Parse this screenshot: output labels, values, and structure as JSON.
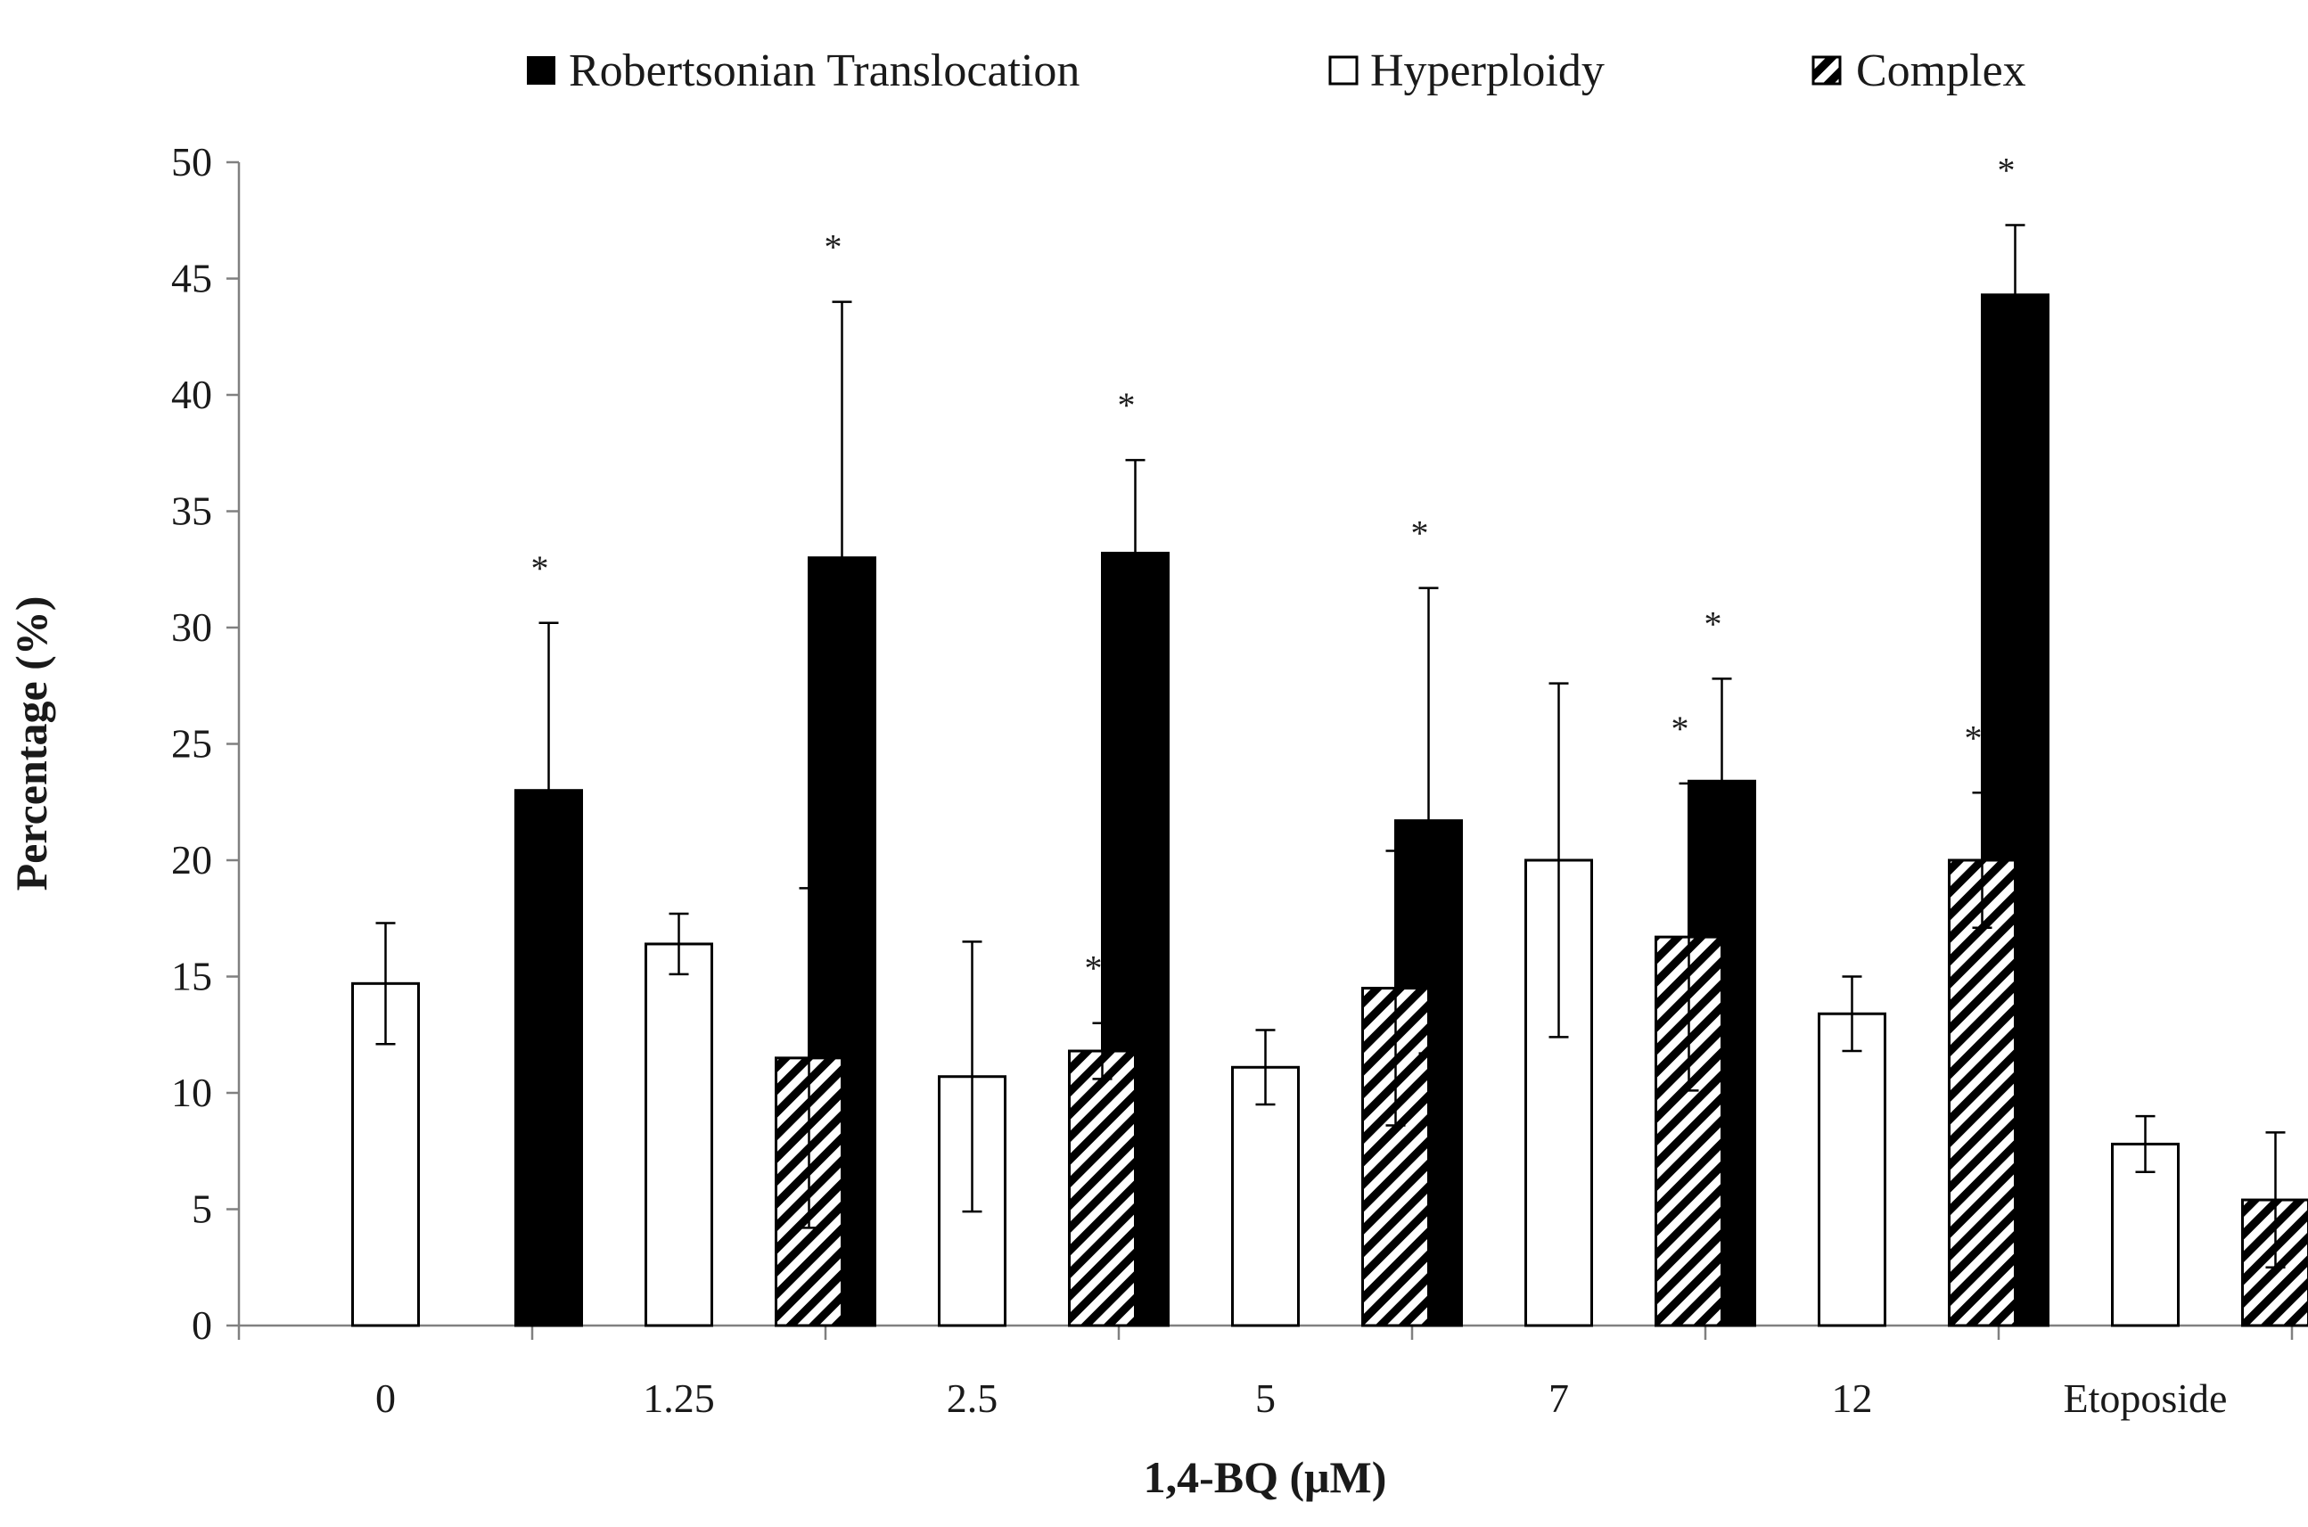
{
  "chart_data": {
    "type": "bar",
    "title": "",
    "xlabel": "1,4-BQ (μM)",
    "ylabel": "Percentage (%)",
    "ylim": [
      0,
      50
    ],
    "yticks": [
      "0",
      "5",
      "10",
      "15",
      "20",
      "25",
      "30",
      "35",
      "40",
      "45",
      "50"
    ],
    "grid": false,
    "legend_position": "top",
    "categories": [
      "0",
      "1.25",
      "2.5",
      "5",
      "7",
      "12",
      "Etoposide"
    ],
    "significance_marker": "*",
    "series": [
      {
        "name": "Robertsonian Translocation",
        "color": "#000000",
        "pattern": "solid",
        "values": [
          0,
          23.0,
          33.0,
          33.2,
          21.7,
          23.4,
          44.3
        ],
        "errors": [
          0,
          7.2,
          11.0,
          4.0,
          10.0,
          4.4,
          3.0
        ],
        "significant": [
          false,
          true,
          true,
          true,
          true,
          true,
          true
        ]
      },
      {
        "name": "Hyperploidy",
        "color": "#ffffff",
        "pattern": "open",
        "values": [
          14.7,
          16.4,
          10.7,
          11.1,
          20.0,
          13.4,
          7.8
        ],
        "errors": [
          2.6,
          1.3,
          5.8,
          1.6,
          7.6,
          1.6,
          1.2
        ],
        "significant": [
          false,
          false,
          false,
          false,
          false,
          false,
          false
        ]
      },
      {
        "name": "Complex",
        "color": "#000000",
        "pattern": "diagonal-hatch",
        "values": [
          0,
          11.5,
          11.8,
          14.5,
          16.7,
          20.0,
          5.4
        ],
        "errors": [
          0,
          7.3,
          1.2,
          5.9,
          6.6,
          2.9,
          2.9
        ],
        "significant": [
          false,
          false,
          true,
          false,
          true,
          true,
          false
        ]
      }
    ]
  }
}
